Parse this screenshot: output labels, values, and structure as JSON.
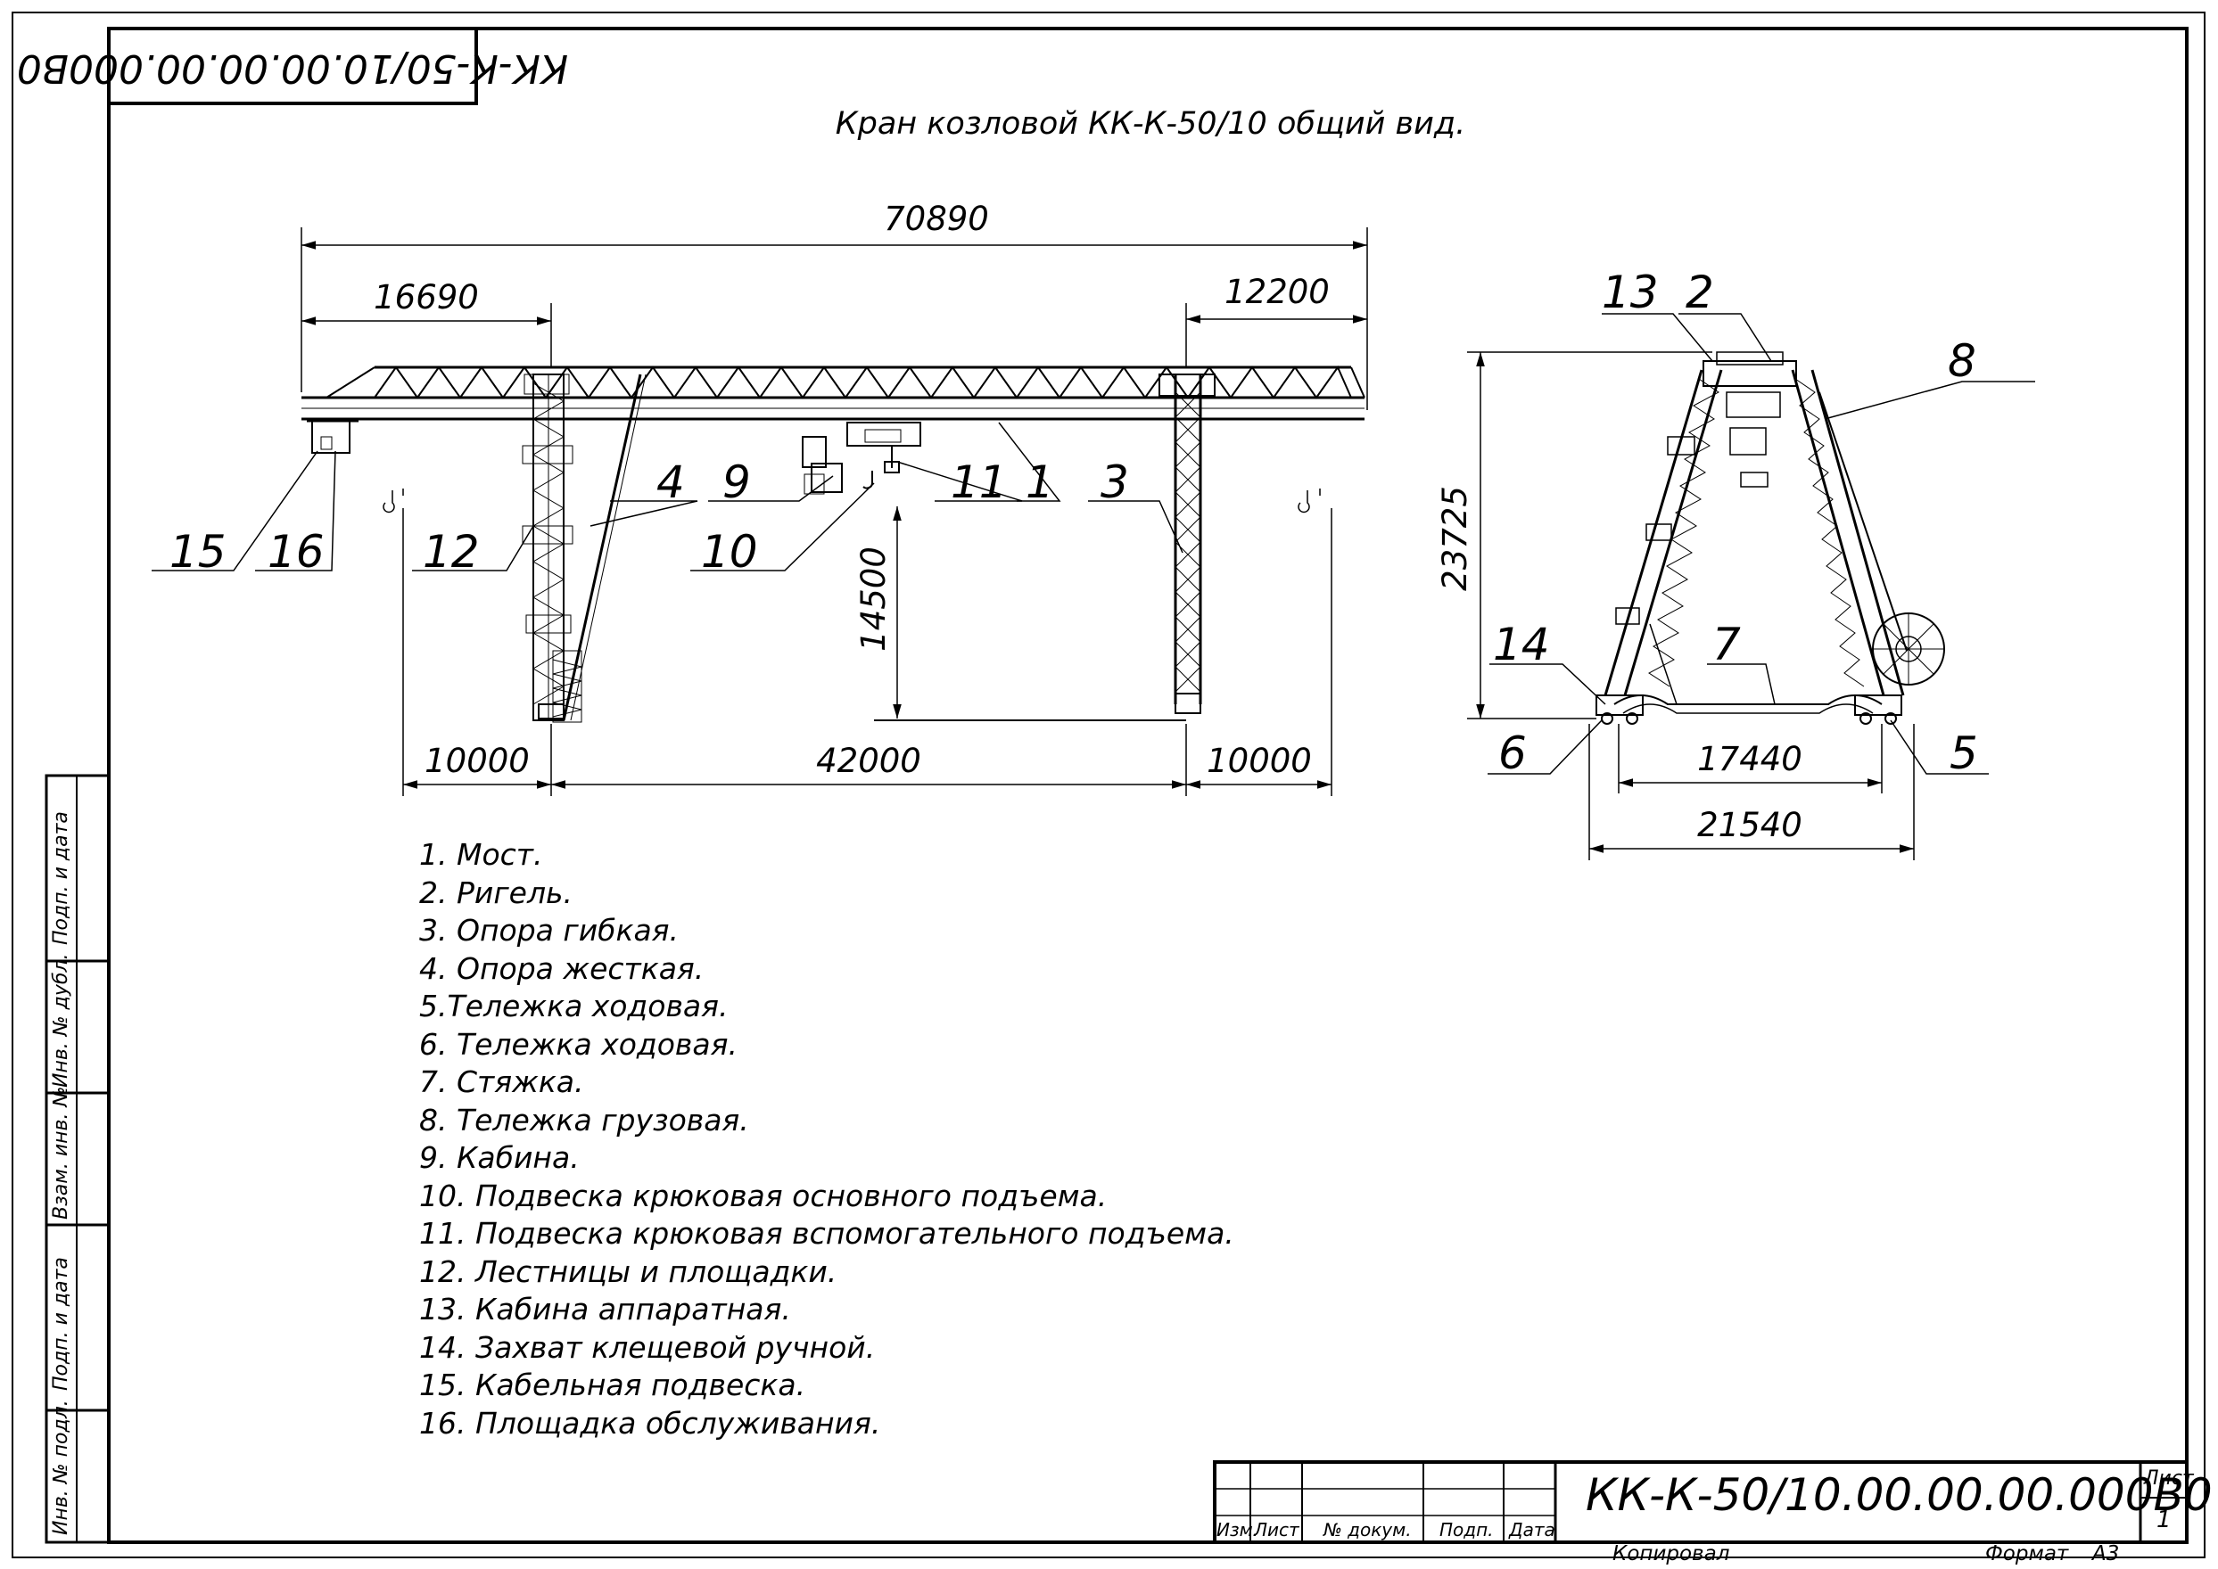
{
  "drawing_title": "Кран козловой КК-К-50/10 общий вид.",
  "stamp_code": "КК-К-50/10.00.00.00.000В0",
  "title_block": {
    "code": "КК-К-50/10.00.00.00.000В0",
    "sheet_label": "Лист",
    "sheet_number": "1",
    "copied_label": "Копировал",
    "format_label": "Формат",
    "format_value": "А3",
    "columns": [
      "Изм.",
      "Лист",
      "№ докум.",
      "Подп.",
      "Дата"
    ]
  },
  "side_labels": [
    "Инв. № подл.",
    "Подп. и дата",
    "Взам. инв. №",
    "Инв. № дубл.",
    "Подп. и дата"
  ],
  "dimensions": {
    "overall_length": "70890",
    "left_cantilever": "16690",
    "right_cantilever": "12200",
    "span": "42000",
    "left_track": "10000",
    "right_track": "10000",
    "hook_height": "14500",
    "total_height": "23725",
    "inner_gauge": "17440",
    "outer_gauge": "21540"
  },
  "callouts": {
    "c1": "1",
    "c2": "2",
    "c3": "3",
    "c4": "4",
    "c5": "5",
    "c6": "6",
    "c7": "7",
    "c8": "8",
    "c9": "9",
    "c10": "10",
    "c11": "11",
    "c12": "12",
    "c13": "13",
    "c14": "14",
    "c15": "15",
    "c16": "16"
  },
  "legend": [
    "1. Мост.",
    "2. Ригель.",
    "3. Опора гибкая.",
    "4. Опора жесткая.",
    "5.Тележка ходовая.",
    "6. Тележка ходовая.",
    "7. Стяжка.",
    "8. Тележка грузовая.",
    "9. Кабина.",
    "10. Подвеска крюковая основного подъема.",
    "11. Подвеска крюковая вспомогательного подъема.",
    "12. Лестницы и площадки.",
    "13. Кабина аппаратная.",
    "14. Захват клещевой ручной.",
    "15. Кабельная подвеска.",
    "16. Площадка обслуживания."
  ]
}
